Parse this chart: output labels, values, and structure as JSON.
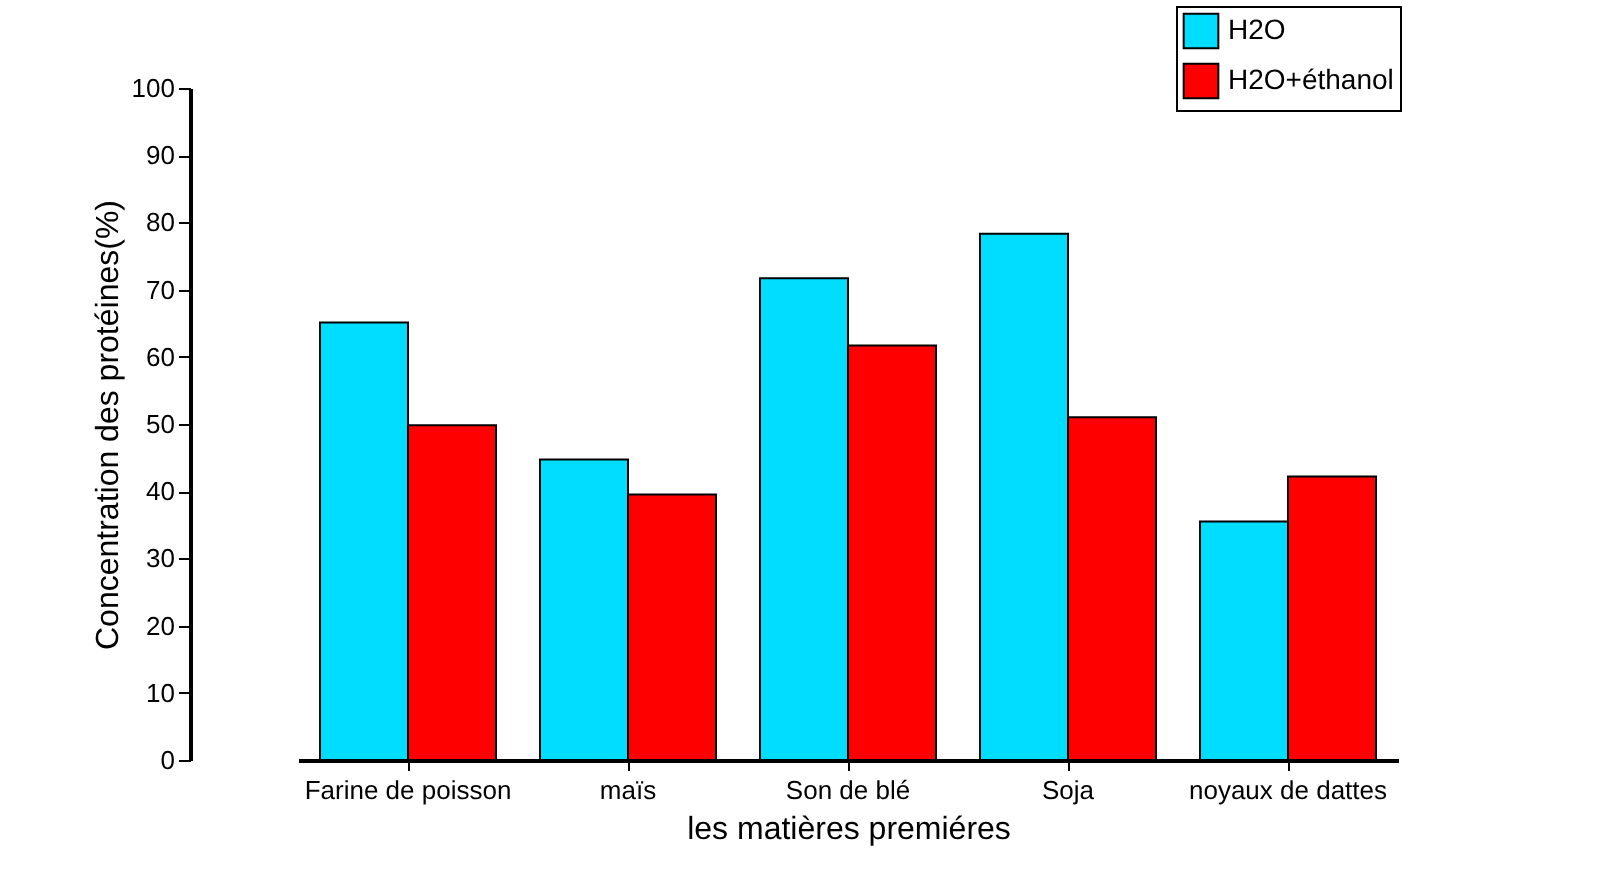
{
  "chart_data": {
    "type": "bar",
    "xlabel": "les matières premiéres",
    "ylabel": "Concentration des protéines(%)",
    "categories": [
      "Farine de poisson",
      "maïs",
      "Son de blé",
      "Soja",
      "noyaux de dattes"
    ],
    "series": [
      {
        "name": "H2O",
        "color": "#00ddff",
        "values": [
          65.1,
          44.7,
          71.7,
          78.3,
          35.5
        ]
      },
      {
        "name": "H2O+éthanol",
        "color": "#ff0000",
        "values": [
          49.8,
          39.5,
          61.7,
          51.0,
          42.2
        ]
      }
    ],
    "ylim": [
      0,
      100
    ],
    "yticks": [
      0,
      10,
      20,
      30,
      40,
      50,
      60,
      70,
      80,
      90,
      100
    ],
    "legend": "top right",
    "grid": false
  }
}
